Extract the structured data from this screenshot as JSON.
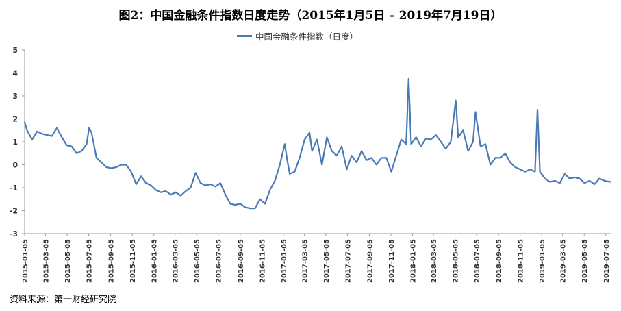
{
  "chart_data": {
    "type": "line",
    "title": "图2：中国金融条件指数日度走势（2015年1月5日 – 2019年7月19日）",
    "legend_position": "top-center",
    "grid": false,
    "ylim": [
      -3,
      5
    ],
    "yticks": [
      -3,
      -2,
      -1,
      0,
      1,
      2,
      3,
      4,
      5
    ],
    "xlim": [
      "2015-01-05",
      "2019-07-19"
    ],
    "xticks": [
      "2015-01-05",
      "2015-03-05",
      "2015-05-05",
      "2015-07-05",
      "2015-09-05",
      "2015-11-05",
      "2016-01-05",
      "2016-03-05",
      "2016-05-05",
      "2016-07-05",
      "2016-09-05",
      "2016-11-05",
      "2017-01-05",
      "2017-03-05",
      "2017-05-05",
      "2017-07-05",
      "2017-09-05",
      "2017-11-05",
      "2018-01-05",
      "2018-03-05",
      "2018-05-05",
      "2018-07-05",
      "2018-09-05",
      "2018-11-05",
      "2019-01-05",
      "2019-03-05",
      "2019-05-05",
      "2019-07-05"
    ],
    "series": [
      {
        "name": "中国金融条件指数（日度）",
        "color": "#4a7ab5",
        "points": [
          [
            "2015-01-05",
            1.85
          ],
          [
            "2015-01-12",
            1.5
          ],
          [
            "2015-01-26",
            1.1
          ],
          [
            "2015-02-09",
            1.45
          ],
          [
            "2015-02-23",
            1.35
          ],
          [
            "2015-03-09",
            1.3
          ],
          [
            "2015-03-23",
            1.25
          ],
          [
            "2015-04-06",
            1.6
          ],
          [
            "2015-04-20",
            1.2
          ],
          [
            "2015-05-04",
            0.85
          ],
          [
            "2015-05-18",
            0.8
          ],
          [
            "2015-06-01",
            0.5
          ],
          [
            "2015-06-15",
            0.6
          ],
          [
            "2015-06-29",
            0.9
          ],
          [
            "2015-07-06",
            1.6
          ],
          [
            "2015-07-13",
            1.4
          ],
          [
            "2015-07-27",
            0.3
          ],
          [
            "2015-08-10",
            0.1
          ],
          [
            "2015-08-24",
            -0.1
          ],
          [
            "2015-09-07",
            -0.15
          ],
          [
            "2015-09-21",
            -0.1
          ],
          [
            "2015-10-05",
            0.0
          ],
          [
            "2015-10-19",
            0.0
          ],
          [
            "2015-11-02",
            -0.3
          ],
          [
            "2015-11-16",
            -0.85
          ],
          [
            "2015-11-30",
            -0.5
          ],
          [
            "2015-12-14",
            -0.8
          ],
          [
            "2015-12-28",
            -0.9
          ],
          [
            "2016-01-11",
            -1.1
          ],
          [
            "2016-01-25",
            -1.2
          ],
          [
            "2016-02-08",
            -1.15
          ],
          [
            "2016-02-22",
            -1.3
          ],
          [
            "2016-03-07",
            -1.2
          ],
          [
            "2016-03-21",
            -1.35
          ],
          [
            "2016-04-04",
            -1.15
          ],
          [
            "2016-04-18",
            -1.0
          ],
          [
            "2016-05-02",
            -0.35
          ],
          [
            "2016-05-16",
            -0.8
          ],
          [
            "2016-05-30",
            -0.9
          ],
          [
            "2016-06-13",
            -0.85
          ],
          [
            "2016-06-27",
            -0.95
          ],
          [
            "2016-07-11",
            -0.8
          ],
          [
            "2016-07-25",
            -1.3
          ],
          [
            "2016-08-08",
            -1.7
          ],
          [
            "2016-08-22",
            -1.75
          ],
          [
            "2016-09-05",
            -1.7
          ],
          [
            "2016-09-19",
            -1.85
          ],
          [
            "2016-10-03",
            -1.9
          ],
          [
            "2016-10-17",
            -1.9
          ],
          [
            "2016-10-31",
            -1.5
          ],
          [
            "2016-11-14",
            -1.7
          ],
          [
            "2016-11-28",
            -1.1
          ],
          [
            "2016-12-12",
            -0.7
          ],
          [
            "2016-12-26",
            0.0
          ],
          [
            "2017-01-09",
            0.9
          ],
          [
            "2017-01-16",
            0.2
          ],
          [
            "2017-01-23",
            -0.4
          ],
          [
            "2017-02-06",
            -0.3
          ],
          [
            "2017-02-20",
            0.3
          ],
          [
            "2017-03-06",
            1.1
          ],
          [
            "2017-03-20",
            1.4
          ],
          [
            "2017-03-27",
            0.6
          ],
          [
            "2017-04-10",
            1.1
          ],
          [
            "2017-04-24",
            0.0
          ],
          [
            "2017-05-08",
            1.2
          ],
          [
            "2017-05-22",
            0.6
          ],
          [
            "2017-06-05",
            0.4
          ],
          [
            "2017-06-19",
            0.8
          ],
          [
            "2017-07-03",
            -0.2
          ],
          [
            "2017-07-17",
            0.4
          ],
          [
            "2017-07-31",
            0.1
          ],
          [
            "2017-08-14",
            0.6
          ],
          [
            "2017-08-28",
            0.2
          ],
          [
            "2017-09-11",
            0.3
          ],
          [
            "2017-09-25",
            0.0
          ],
          [
            "2017-10-09",
            0.3
          ],
          [
            "2017-10-23",
            0.3
          ],
          [
            "2017-11-06",
            -0.3
          ],
          [
            "2017-11-20",
            0.4
          ],
          [
            "2017-12-04",
            1.1
          ],
          [
            "2017-12-18",
            0.9
          ],
          [
            "2017-12-25",
            3.75
          ],
          [
            "2018-01-01",
            0.9
          ],
          [
            "2018-01-15",
            1.2
          ],
          [
            "2018-01-29",
            0.8
          ],
          [
            "2018-02-12",
            1.15
          ],
          [
            "2018-02-26",
            1.1
          ],
          [
            "2018-03-12",
            1.3
          ],
          [
            "2018-03-26",
            1.0
          ],
          [
            "2018-04-09",
            0.7
          ],
          [
            "2018-04-23",
            1.0
          ],
          [
            "2018-05-07",
            2.8
          ],
          [
            "2018-05-14",
            1.2
          ],
          [
            "2018-05-28",
            1.5
          ],
          [
            "2018-06-11",
            0.6
          ],
          [
            "2018-06-25",
            1.0
          ],
          [
            "2018-07-02",
            2.3
          ],
          [
            "2018-07-16",
            0.8
          ],
          [
            "2018-07-30",
            0.9
          ],
          [
            "2018-08-13",
            0.0
          ],
          [
            "2018-08-27",
            0.3
          ],
          [
            "2018-09-10",
            0.3
          ],
          [
            "2018-09-24",
            0.5
          ],
          [
            "2018-10-08",
            0.1
          ],
          [
            "2018-10-22",
            -0.1
          ],
          [
            "2018-11-05",
            -0.2
          ],
          [
            "2018-11-19",
            -0.3
          ],
          [
            "2018-12-03",
            -0.2
          ],
          [
            "2018-12-17",
            -0.3
          ],
          [
            "2018-12-24",
            2.4
          ],
          [
            "2018-12-31",
            -0.3
          ],
          [
            "2019-01-14",
            -0.6
          ],
          [
            "2019-01-28",
            -0.75
          ],
          [
            "2019-02-11",
            -0.7
          ],
          [
            "2019-02-25",
            -0.8
          ],
          [
            "2019-03-11",
            -0.4
          ],
          [
            "2019-03-25",
            -0.6
          ],
          [
            "2019-04-08",
            -0.55
          ],
          [
            "2019-04-22",
            -0.6
          ],
          [
            "2019-05-06",
            -0.8
          ],
          [
            "2019-05-20",
            -0.7
          ],
          [
            "2019-06-03",
            -0.85
          ],
          [
            "2019-06-17",
            -0.6
          ],
          [
            "2019-07-01",
            -0.7
          ],
          [
            "2019-07-19",
            -0.75
          ]
        ]
      }
    ]
  },
  "source_note": "资料来源：第一财经研究院"
}
